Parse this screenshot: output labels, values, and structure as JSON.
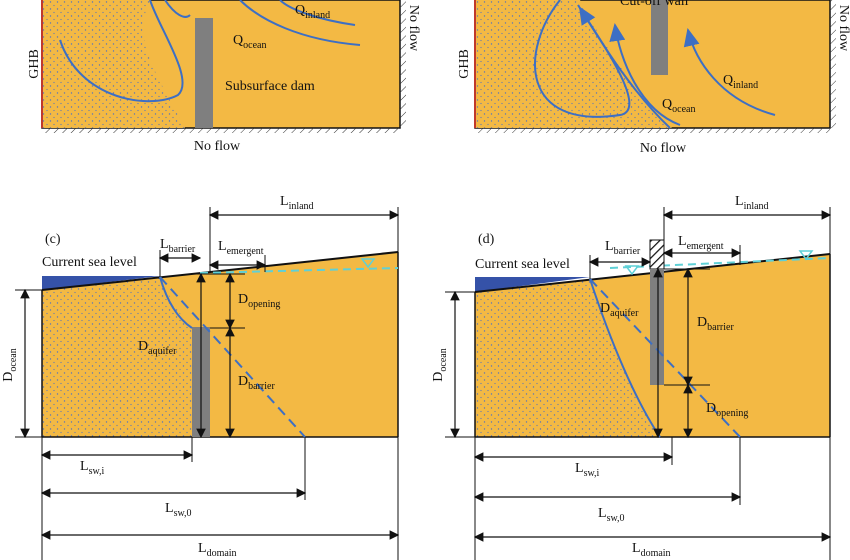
{
  "panel_a": {
    "q_inland": {
      "base": "Q",
      "sub": "inland"
    },
    "q_ocean": {
      "base": "Q",
      "sub": "ocean"
    },
    "ghb": "GHB",
    "no_flow_right": "No flow",
    "no_flow_bottom": "No flow",
    "barrier": "Subsurface dam"
  },
  "panel_b": {
    "q_inland": {
      "base": "Q",
      "sub": "inland"
    },
    "q_ocean": {
      "base": "Q",
      "sub": "ocean"
    },
    "ghb": "GHB",
    "no_flow_right": "No flow",
    "no_flow_bottom": "No flow",
    "barrier": "Cut-off wall"
  },
  "panel_c": {
    "label": "(c)",
    "sea_level": "Current sea level",
    "l_barrier": {
      "base": "L",
      "sub": "barrier"
    },
    "l_emergent": {
      "base": "L",
      "sub": "emergent"
    },
    "l_inland": {
      "base": "L",
      "sub": "inland"
    },
    "d_opening": {
      "base": "D",
      "sub": "opening"
    },
    "d_aquifer": {
      "base": "D",
      "sub": "aquifer"
    },
    "d_barrier": {
      "base": "D",
      "sub": "barrier"
    },
    "d_ocean": {
      "base": "D",
      "sub": "ocean"
    },
    "l_sw_i": {
      "base": "L",
      "sub": "sw,i"
    },
    "l_sw_0": {
      "base": "L",
      "sub": "sw,0"
    },
    "l_domain": {
      "base": "L",
      "sub": "domain"
    }
  },
  "panel_d": {
    "label": "(d)",
    "sea_level": "Current sea level",
    "l_barrier": {
      "base": "L",
      "sub": "barrier"
    },
    "l_emergent": {
      "base": "L",
      "sub": "emergent"
    },
    "l_inland": {
      "base": "L",
      "sub": "inland"
    },
    "d_opening": {
      "base": "D",
      "sub": "opening"
    },
    "d_aquifer": {
      "base": "D",
      "sub": "aquifer"
    },
    "d_barrier": {
      "base": "D",
      "sub": "barrier"
    },
    "d_ocean": {
      "base": "D",
      "sub": "ocean"
    },
    "l_sw_i": {
      "base": "L",
      "sub": "sw,i"
    },
    "l_sw_0": {
      "base": "L",
      "sub": "sw,0"
    },
    "l_domain": {
      "base": "L",
      "sub": "domain"
    }
  }
}
